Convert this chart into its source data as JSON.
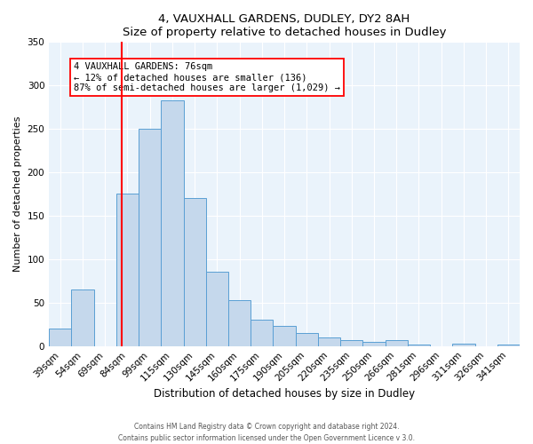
{
  "title": "4, VAUXHALL GARDENS, DUDLEY, DY2 8AH",
  "subtitle": "Size of property relative to detached houses in Dudley",
  "xlabel": "Distribution of detached houses by size in Dudley",
  "ylabel": "Number of detached properties",
  "bar_color": "#c5d8ec",
  "bar_edge_color": "#5a9fd4",
  "bg_color": "#eaf3fb",
  "categories": [
    "39sqm",
    "54sqm",
    "69sqm",
    "84sqm",
    "99sqm",
    "115sqm",
    "130sqm",
    "145sqm",
    "160sqm",
    "175sqm",
    "190sqm",
    "205sqm",
    "220sqm",
    "235sqm",
    "250sqm",
    "266sqm",
    "281sqm",
    "296sqm",
    "311sqm",
    "326sqm",
    "341sqm"
  ],
  "values": [
    20,
    65,
    0,
    175,
    250,
    283,
    170,
    85,
    53,
    30,
    23,
    15,
    10,
    7,
    5,
    7,
    2,
    0,
    3,
    0,
    2
  ],
  "ylim": [
    0,
    350
  ],
  "yticks": [
    0,
    50,
    100,
    150,
    200,
    250,
    300,
    350
  ],
  "red_line_index": 2.73,
  "annotation_title": "4 VAUXHALL GARDENS: 76sqm",
  "annotation_line1": "← 12% of detached houses are smaller (136)",
  "annotation_line2": "87% of semi-detached houses are larger (1,029) →",
  "footer1": "Contains HM Land Registry data © Crown copyright and database right 2024.",
  "footer2": "Contains public sector information licensed under the Open Government Licence v 3.0.",
  "n_bins": 21
}
